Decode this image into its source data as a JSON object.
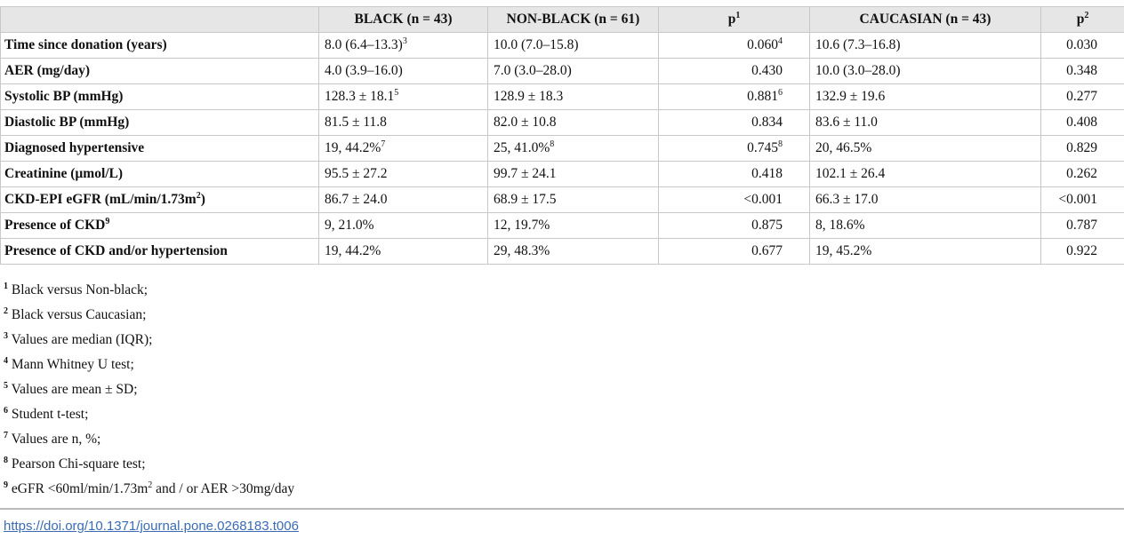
{
  "table": {
    "header": [
      {
        "text": "BLACK (n = 43)"
      },
      {
        "text": "NON-BLACK (n = 61)"
      },
      {
        "text": "p",
        "sup": "1"
      },
      {
        "text": "CAUCASIAN (n = 43)"
      },
      {
        "text": "p",
        "sup": "2"
      }
    ],
    "rows": [
      {
        "label": {
          "text": "Time since donation (years)"
        },
        "cells": [
          {
            "text": "8.0 (6.4–13.3)",
            "sup": "3"
          },
          {
            "text": "10.0 (7.0–15.8)"
          },
          {
            "text": "0.060",
            "sup": "4"
          },
          {
            "text": "10.6 (7.3–16.8)"
          },
          {
            "text": "0.030"
          }
        ]
      },
      {
        "label": {
          "text": "AER (mg/day)"
        },
        "cells": [
          {
            "text": "4.0 (3.9–16.0)"
          },
          {
            "text": "7.0 (3.0–28.0)"
          },
          {
            "text": "0.430"
          },
          {
            "text": "10.0 (3.0–28.0)"
          },
          {
            "text": "0.348"
          }
        ]
      },
      {
        "label": {
          "text": "Systolic BP (mmHg)"
        },
        "cells": [
          {
            "text": "128.3 ± 18.1",
            "sup": "5"
          },
          {
            "text": "128.9 ± 18.3"
          },
          {
            "text": "0.881",
            "sup": "6"
          },
          {
            "text": "132.9 ± 19.6"
          },
          {
            "text": "0.277"
          }
        ]
      },
      {
        "label": {
          "text": "Diastolic BP (mmHg)"
        },
        "cells": [
          {
            "text": "81.5 ± 11.8"
          },
          {
            "text": "82.0 ± 10.8"
          },
          {
            "text": "0.834"
          },
          {
            "text": "83.6 ± 11.0"
          },
          {
            "text": "0.408"
          }
        ]
      },
      {
        "label": {
          "text": "Diagnosed hypertensive"
        },
        "cells": [
          {
            "text": "19, 44.2%",
            "sup": "7"
          },
          {
            "text": "25, 41.0%",
            "sup": "8"
          },
          {
            "text": "0.745",
            "sup": "8"
          },
          {
            "text": "20, 46.5%"
          },
          {
            "text": "0.829"
          }
        ]
      },
      {
        "label": {
          "text": "Creatinine (µmol/L)"
        },
        "cells": [
          {
            "text": "95.5 ± 27.2"
          },
          {
            "text": "99.7 ± 24.1"
          },
          {
            "text": "0.418"
          },
          {
            "text": "102.1 ± 26.4"
          },
          {
            "text": "0.262"
          }
        ]
      },
      {
        "label": {
          "text": "CKD-EPI eGFR (mL/min/1.73m",
          "sup": "2",
          "after": ")"
        },
        "cells": [
          {
            "text": "86.7 ± 24.0"
          },
          {
            "text": "68.9 ± 17.5"
          },
          {
            "text": "<0.001"
          },
          {
            "text": "66.3 ± 17.0"
          },
          {
            "text": "<0.001"
          }
        ]
      },
      {
        "label": {
          "text": "Presence of CKD",
          "sup": "9"
        },
        "cells": [
          {
            "text": "9, 21.0%"
          },
          {
            "text": "12, 19.7%"
          },
          {
            "text": "0.875"
          },
          {
            "text": "8, 18.6%"
          },
          {
            "text": "0.787"
          }
        ]
      },
      {
        "label": {
          "text": "Presence of CKD and/or hypertension"
        },
        "cells": [
          {
            "text": "19, 44.2%"
          },
          {
            "text": "29, 48.3%"
          },
          {
            "text": "0.677"
          },
          {
            "text": "19, 45.2%"
          },
          {
            "text": "0.922"
          }
        ]
      }
    ]
  },
  "footnotes": [
    {
      "mark": "1",
      "text": "Black versus Non-black;"
    },
    {
      "mark": "2",
      "text": "Black versus Caucasian;"
    },
    {
      "mark": "3",
      "text": "Values are median (IQR);"
    },
    {
      "mark": "4",
      "text": "Mann Whitney U test;"
    },
    {
      "mark": "5",
      "text": "Values are mean ± SD;"
    },
    {
      "mark": "6",
      "text": "Student t-test;"
    },
    {
      "mark": "7",
      "text": "Values are n, %;"
    },
    {
      "mark": "8",
      "text": "Pearson Chi-square test;"
    },
    {
      "mark": "9",
      "text": "eGFR <60ml/min/1.73m",
      "sup": "2",
      "after": " and / or AER >30mg/day"
    }
  ],
  "doi": "https://doi.org/10.1371/journal.pone.0268183.t006"
}
